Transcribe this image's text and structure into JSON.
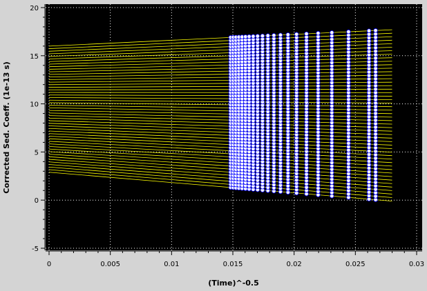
{
  "chart_data": {
    "type": "scatter",
    "xlabel": "(Time)^-0.5",
    "ylabel": "Corrected Sed. Coeff. (1e-13 s)",
    "xlim": [
      0,
      0.03
    ],
    "ylim": [
      -5,
      20
    ],
    "x_ticks": [
      "0",
      "0.005",
      "0.01",
      "0.015",
      "0.02",
      "0.025",
      "0.03"
    ],
    "y_ticks": [
      "-5",
      "0",
      "5",
      "10",
      "15",
      "20"
    ],
    "x_tick_values": [
      0,
      0.005,
      0.01,
      0.015,
      0.02,
      0.025,
      0.03
    ],
    "y_tick_values": [
      -5,
      0,
      5,
      10,
      15,
      20
    ],
    "grid": true,
    "scan_x": [
      0.01482,
      0.01503,
      0.01525,
      0.01549,
      0.01575,
      0.01603,
      0.01633,
      0.01666,
      0.01702,
      0.01742,
      0.01786,
      0.01835,
      0.01889,
      0.0195,
      0.0202,
      0.02101,
      0.02196,
      0.02308,
      0.02444,
      0.02611,
      0.02665
    ],
    "fraction_count": 50,
    "line_range": {
      "top": [
        16.0,
        17.7
      ],
      "bottom": [
        2.9,
        -0.1
      ]
    },
    "colors": {
      "plot_bg": "#000000",
      "frame_bg": "#d4d4d4",
      "lines": "#ffff00",
      "points_fill": "#ffffff",
      "points_edge": "#0000ff",
      "grid": "#ffffff"
    }
  }
}
